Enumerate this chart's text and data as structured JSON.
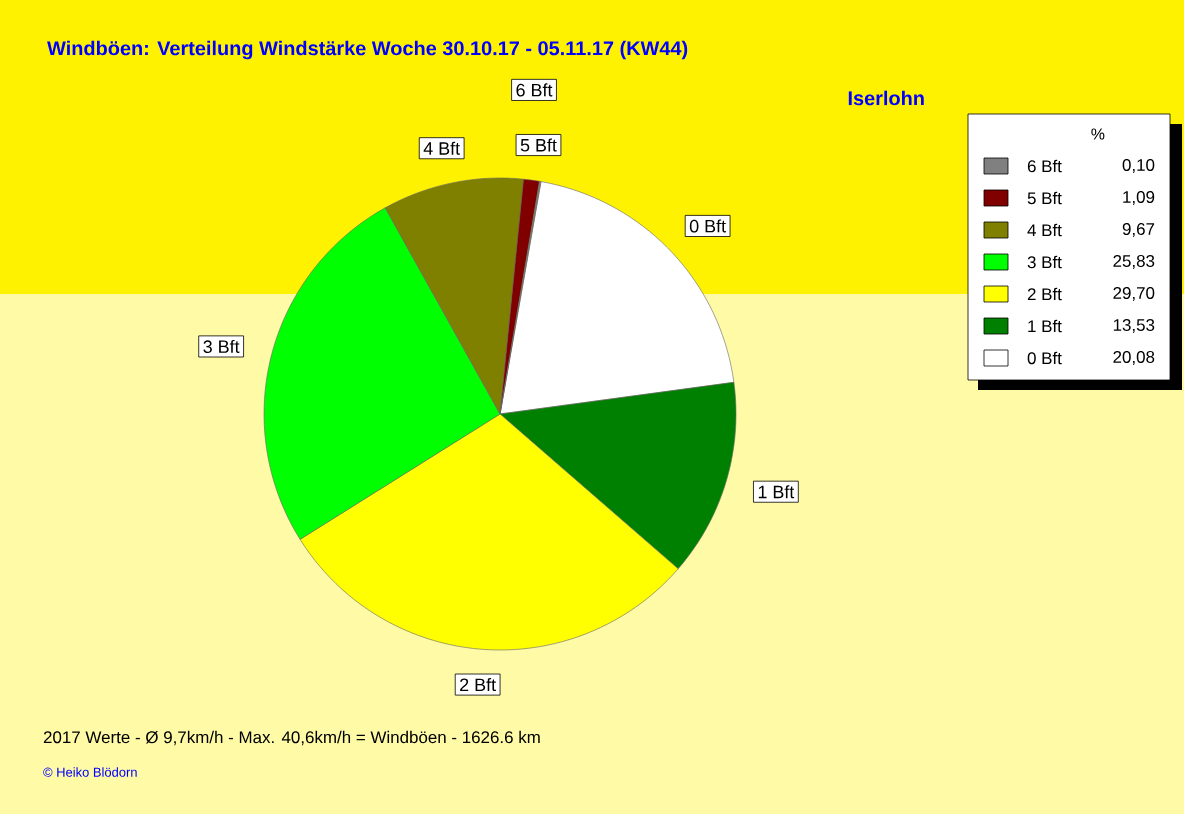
{
  "chart_data": {
    "type": "pie",
    "title": "Windböen: Verteilung Windstärke  Woche 30.10.17 - 05.11.17 (KW44)",
    "subtitle": "Iserlohn",
    "categories": [
      "0 Bft",
      "1 Bft",
      "2 Bft",
      "3 Bft",
      "4 Bft",
      "5 Bft",
      "6 Bft"
    ],
    "values": [
      20.08,
      13.53,
      29.7,
      25.83,
      9.67,
      1.09,
      0.1
    ],
    "value_labels": [
      "20,08",
      "13,53",
      "29,70",
      "25,83",
      "9,67",
      "1,09",
      "0,10"
    ],
    "colors": [
      "#ffffff",
      "#008000",
      "#ffff00",
      "#00ff00",
      "#808000",
      "#800000",
      "#808080"
    ],
    "legend": "right",
    "legend_title": "%",
    "annotations": [
      "2017 Werte   -   Ø 9,7km/h  -  Max. 40,6km/h = Windböen   -   1626.6 km",
      "© Heiko Blödorn"
    ]
  }
}
